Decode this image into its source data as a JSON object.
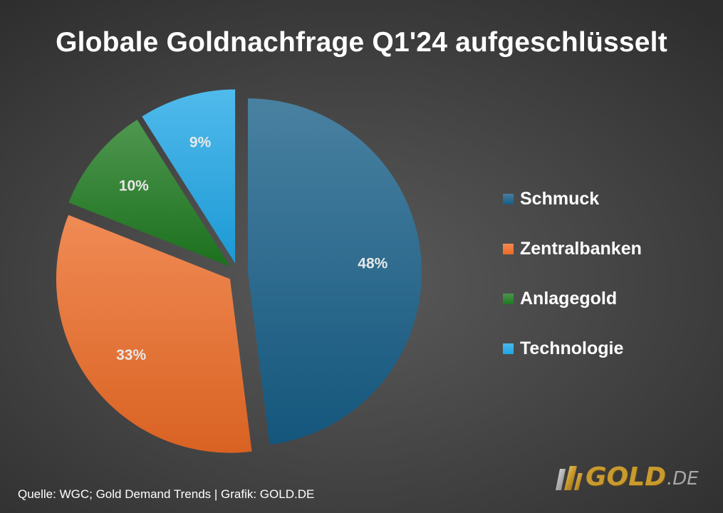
{
  "chart_data": {
    "type": "pie",
    "title": "Globale Goldnachfrage Q1'24 aufgeschlüsselt",
    "categories": [
      "Schmuck",
      "Zentralbanken",
      "Anlagegold",
      "Technologie"
    ],
    "values": [
      48,
      33,
      10,
      9
    ],
    "data_labels": [
      "48%",
      "33%",
      "10%",
      "9%"
    ],
    "colors": [
      "#165e87",
      "#ec6a25",
      "#1d7a1f",
      "#1ea6e6"
    ],
    "exploded": true,
    "legend_position": "right"
  },
  "footer": {
    "source": "Quelle: WGC; Gold Demand Trends | Grafik: GOLD.DE"
  },
  "logo": {
    "text": "GOLD",
    "suffix": ".DE"
  }
}
